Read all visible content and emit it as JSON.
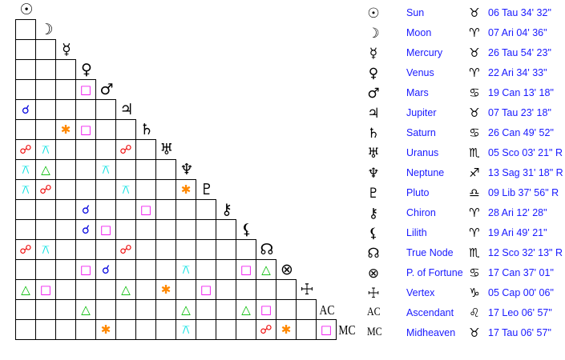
{
  "planets": [
    {
      "name": "Sun",
      "glyph": "☉",
      "sign": "♉",
      "position": "06 Tau 34' 32\""
    },
    {
      "name": "Moon",
      "glyph": "☽",
      "sign": "♈",
      "position": "07 Ari 04' 36\""
    },
    {
      "name": "Mercury",
      "glyph": "☿",
      "sign": "♉",
      "position": "26 Tau 54' 23\""
    },
    {
      "name": "Venus",
      "glyph": "♀",
      "sign": "♈",
      "position": "22 Ari 34' 33\""
    },
    {
      "name": "Mars",
      "glyph": "♂",
      "sign": "♋",
      "position": "19 Can 13' 18\""
    },
    {
      "name": "Jupiter",
      "glyph": "♃",
      "sign": "♉",
      "position": "07 Tau 23' 18\""
    },
    {
      "name": "Saturn",
      "glyph": "♄",
      "sign": "♋",
      "position": "26 Can 49' 52\""
    },
    {
      "name": "Uranus",
      "glyph": "♅",
      "sign": "♏",
      "position": "05 Sco 03' 21\" R"
    },
    {
      "name": "Neptune",
      "glyph": "♆",
      "sign": "♐",
      "position": "13 Sag 31' 18\" R"
    },
    {
      "name": "Pluto",
      "glyph": "♇",
      "sign": "♎",
      "position": "09 Lib 37' 56\" R"
    },
    {
      "name": "Chiron",
      "glyph": "⚷",
      "sign": "♈",
      "position": "28 Ari 12' 28\""
    },
    {
      "name": "Lilith",
      "glyph": "⚸",
      "sign": "♈",
      "position": "19 Ari 49' 21\""
    },
    {
      "name": "True Node",
      "glyph": "☊",
      "sign": "♏",
      "position": "12 Sco 32' 13\" R"
    },
    {
      "name": "P. of Fortune",
      "glyph": "⊗",
      "sign": "♋",
      "position": "17 Can 37' 01\""
    },
    {
      "name": "Vertex",
      "glyph": "☩",
      "sign": "♑",
      "position": "05 Cap 00' 06\""
    },
    {
      "name": "Ascendant",
      "glyph": "AC",
      "sign": "♌",
      "position": "17 Leo 06' 57\""
    },
    {
      "name": "Midheaven",
      "glyph": "MC",
      "sign": "♉",
      "position": "17 Tau 06' 57\""
    }
  ],
  "aspect_types": {
    "conjunction": {
      "glyph": "☌",
      "color": "#0000dd"
    },
    "opposition": {
      "glyph": "☍",
      "color": "#ee0000"
    },
    "trine": {
      "glyph": "△",
      "color": "#00bb00"
    },
    "square": {
      "glyph": "□",
      "color": "#ee00ee"
    },
    "sextile": {
      "glyph": "✱",
      "color": "#ff8800"
    },
    "quincunx": {
      "glyph": "⚻",
      "color": "#00e0e0"
    }
  },
  "aspects": [
    {
      "a": "Mars",
      "b": "Venus",
      "type": "square"
    },
    {
      "a": "Jupiter",
      "b": "Sun",
      "type": "conjunction"
    },
    {
      "a": "Saturn",
      "b": "Mercury",
      "type": "sextile"
    },
    {
      "a": "Saturn",
      "b": "Venus",
      "type": "square"
    },
    {
      "a": "Uranus",
      "b": "Sun",
      "type": "opposition"
    },
    {
      "a": "Uranus",
      "b": "Moon",
      "type": "quincunx"
    },
    {
      "a": "Uranus",
      "b": "Jupiter",
      "type": "opposition"
    },
    {
      "a": "Neptune",
      "b": "Sun",
      "type": "quincunx"
    },
    {
      "a": "Neptune",
      "b": "Moon",
      "type": "trine"
    },
    {
      "a": "Neptune",
      "b": "Mars",
      "type": "quincunx"
    },
    {
      "a": "Pluto",
      "b": "Sun",
      "type": "quincunx"
    },
    {
      "a": "Pluto",
      "b": "Moon",
      "type": "opposition"
    },
    {
      "a": "Pluto",
      "b": "Jupiter",
      "type": "quincunx"
    },
    {
      "a": "Pluto",
      "b": "Neptune",
      "type": "sextile"
    },
    {
      "a": "Chiron",
      "b": "Venus",
      "type": "conjunction"
    },
    {
      "a": "Chiron",
      "b": "Saturn",
      "type": "square"
    },
    {
      "a": "Lilith",
      "b": "Venus",
      "type": "conjunction"
    },
    {
      "a": "Lilith",
      "b": "Mars",
      "type": "square"
    },
    {
      "a": "True Node",
      "b": "Sun",
      "type": "opposition"
    },
    {
      "a": "True Node",
      "b": "Moon",
      "type": "quincunx"
    },
    {
      "a": "True Node",
      "b": "Jupiter",
      "type": "opposition"
    },
    {
      "a": "P. of Fortune",
      "b": "Venus",
      "type": "square"
    },
    {
      "a": "P. of Fortune",
      "b": "Mars",
      "type": "conjunction"
    },
    {
      "a": "P. of Fortune",
      "b": "Neptune",
      "type": "quincunx"
    },
    {
      "a": "P. of Fortune",
      "b": "Lilith",
      "type": "square"
    },
    {
      "a": "P. of Fortune",
      "b": "True Node",
      "type": "trine"
    },
    {
      "a": "Vertex",
      "b": "Sun",
      "type": "trine"
    },
    {
      "a": "Vertex",
      "b": "Moon",
      "type": "square"
    },
    {
      "a": "Vertex",
      "b": "Jupiter",
      "type": "trine"
    },
    {
      "a": "Vertex",
      "b": "Uranus",
      "type": "sextile"
    },
    {
      "a": "Vertex",
      "b": "Pluto",
      "type": "square"
    },
    {
      "a": "Ascendant",
      "b": "Venus",
      "type": "trine"
    },
    {
      "a": "Ascendant",
      "b": "Neptune",
      "type": "trine"
    },
    {
      "a": "Ascendant",
      "b": "Lilith",
      "type": "trine"
    },
    {
      "a": "Ascendant",
      "b": "True Node",
      "type": "square"
    },
    {
      "a": "Midheaven",
      "b": "Mars",
      "type": "sextile"
    },
    {
      "a": "Midheaven",
      "b": "Neptune",
      "type": "quincunx"
    },
    {
      "a": "Midheaven",
      "b": "True Node",
      "type": "opposition"
    },
    {
      "a": "Midheaven",
      "b": "P. of Fortune",
      "type": "sextile"
    },
    {
      "a": "Midheaven",
      "b": "Ascendant",
      "type": "square"
    }
  ]
}
